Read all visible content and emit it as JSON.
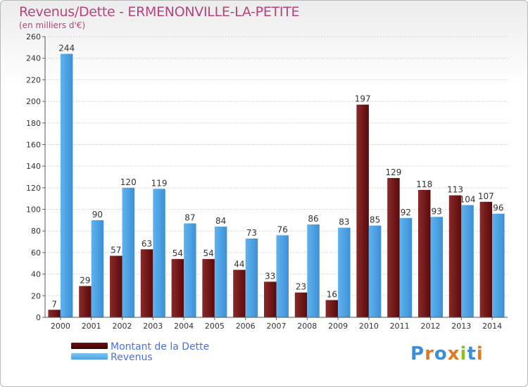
{
  "title": "Revenus/Dette - ERMENONVILLE-LA-PETITE",
  "subtitle": "(en milliers d'€)",
  "logo": {
    "text": "Proxiti"
  },
  "legend": [
    {
      "label": "Montant de la Dette",
      "color": "#6e0f0f"
    },
    {
      "label": "Revenus",
      "color": "#4aa3e6"
    }
  ],
  "chart_data": {
    "type": "bar",
    "categories": [
      "2000",
      "2001",
      "2002",
      "2003",
      "2004",
      "2005",
      "2006",
      "2007",
      "2008",
      "2009",
      "2010",
      "2011",
      "2012",
      "2013",
      "2014"
    ],
    "series": [
      {
        "name": "Montant de la Dette",
        "color": "#6e0f0f",
        "values": [
          7,
          29,
          57,
          63,
          54,
          54,
          44,
          33,
          23,
          16,
          197,
          129,
          118,
          113,
          107
        ]
      },
      {
        "name": "Revenus",
        "color": "#4aa3e6",
        "values": [
          244,
          90,
          120,
          119,
          87,
          84,
          73,
          76,
          86,
          83,
          85,
          92,
          93,
          104,
          96
        ]
      }
    ],
    "ylim": [
      0,
      260
    ],
    "yticks": [
      0,
      20,
      40,
      60,
      80,
      100,
      120,
      140,
      160,
      180,
      200,
      220,
      240,
      260
    ],
    "grid": true,
    "legend_position": "bottom-left"
  }
}
